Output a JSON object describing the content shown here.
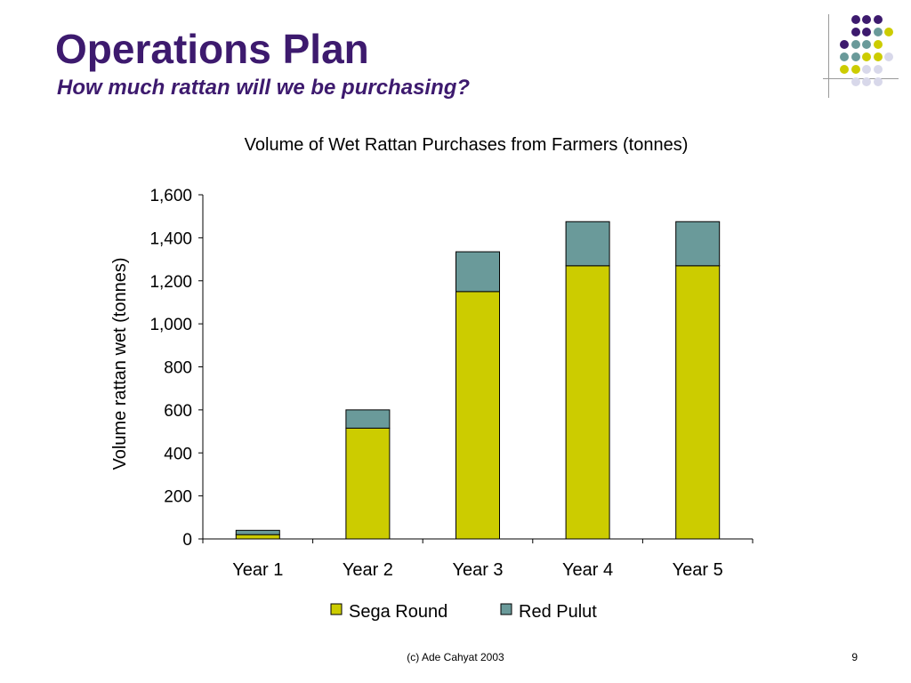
{
  "slide": {
    "title": "Operations Plan",
    "subtitle": "How much rattan will we be purchasing?",
    "footer": "(c) Ade Cahyat 2003",
    "page_number": "9"
  },
  "colors": {
    "title": "#3d1a6e",
    "dot_purple": "#3d1a6e",
    "dot_teal": "#6a9a9a",
    "dot_yellow": "#cccc00",
    "dot_lavender": "#d8d8ea"
  },
  "chart_data": {
    "type": "bar",
    "stacked": true,
    "title": "Volume of Wet Rattan Purchases from Farmers (tonnes)",
    "xlabel": "",
    "ylabel": "Volume rattan wet (tonnes)",
    "categories": [
      "Year 1",
      "Year 2",
      "Year 3",
      "Year 4",
      "Year 5"
    ],
    "ylim": [
      0,
      1600
    ],
    "yticks": [
      0,
      200,
      400,
      600,
      800,
      1000,
      1200,
      1400,
      1600
    ],
    "ytick_labels": [
      "0",
      "200",
      "400",
      "600",
      "800",
      "1,000",
      "1,200",
      "1,400",
      "1,600"
    ],
    "series": [
      {
        "name": "Sega Round",
        "color": "#cccc00",
        "values": [
          20,
          515,
          1150,
          1270,
          1270
        ]
      },
      {
        "name": "Red Pulut",
        "color": "#6a9a9a",
        "values": [
          20,
          85,
          185,
          205,
          205
        ]
      }
    ],
    "grid": false,
    "legend_position": "bottom"
  }
}
